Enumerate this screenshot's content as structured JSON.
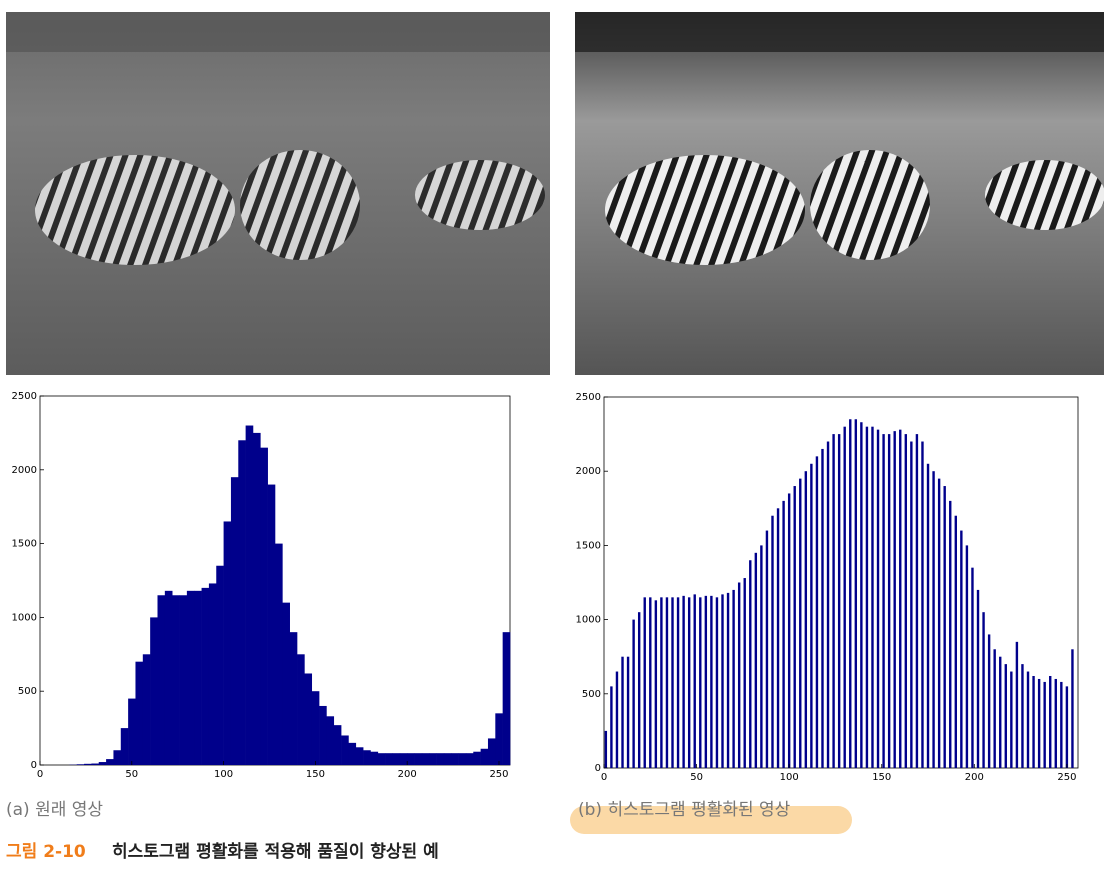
{
  "chart_data": [
    {
      "type": "histogram",
      "color": "#00008b",
      "bins": [
        0,
        4,
        8,
        12,
        16,
        20,
        24,
        28,
        32,
        36,
        40,
        44,
        48,
        52,
        56,
        60,
        64,
        68,
        72,
        76,
        80,
        84,
        88,
        92,
        96,
        100,
        104,
        108,
        112,
        116,
        120,
        124,
        128,
        132,
        136,
        140,
        144,
        148,
        152,
        156,
        160,
        164,
        168,
        172,
        176,
        180,
        184,
        188,
        192,
        196,
        200,
        204,
        208,
        212,
        216,
        220,
        224,
        228,
        232,
        236,
        240,
        244,
        248,
        252,
        256
      ],
      "values": [
        0,
        0,
        0,
        0,
        2,
        5,
        8,
        10,
        20,
        40,
        100,
        250,
        450,
        700,
        750,
        1000,
        1150,
        1180,
        1150,
        1150,
        1180,
        1180,
        1200,
        1230,
        1350,
        1650,
        1950,
        2200,
        2300,
        2250,
        2150,
        1900,
        1500,
        1100,
        900,
        750,
        620,
        500,
        400,
        330,
        270,
        200,
        150,
        120,
        100,
        90,
        80,
        80,
        80,
        80,
        80,
        80,
        80,
        80,
        80,
        80,
        80,
        80,
        80,
        90,
        110,
        180,
        350,
        900
      ],
      "xlim": [
        0,
        256
      ],
      "xticks": [
        0,
        50,
        100,
        150,
        200,
        250
      ],
      "ylim": [
        0,
        2500
      ],
      "yticks": [
        0,
        500,
        1000,
        1500,
        2000,
        2500
      ]
    },
    {
      "type": "bar",
      "color": "#00008b",
      "x": [
        1,
        4,
        7,
        10,
        13,
        16,
        19,
        22,
        25,
        28,
        31,
        34,
        37,
        40,
        43,
        46,
        49,
        52,
        55,
        58,
        61,
        64,
        67,
        70,
        73,
        76,
        79,
        82,
        85,
        88,
        91,
        94,
        97,
        100,
        103,
        106,
        109,
        112,
        115,
        118,
        121,
        124,
        127,
        130,
        133,
        136,
        139,
        142,
        145,
        148,
        151,
        154,
        157,
        160,
        163,
        166,
        169,
        172,
        175,
        178,
        181,
        184,
        187,
        190,
        193,
        196,
        199,
        202,
        205,
        208,
        211,
        214,
        217,
        220,
        223,
        226,
        229,
        232,
        235,
        238,
        241,
        244,
        247,
        250,
        253
      ],
      "values": [
        250,
        550,
        650,
        750,
        750,
        1000,
        1050,
        1150,
        1150,
        1130,
        1150,
        1150,
        1150,
        1150,
        1160,
        1150,
        1170,
        1150,
        1160,
        1160,
        1150,
        1170,
        1180,
        1200,
        1250,
        1280,
        1400,
        1450,
        1500,
        1600,
        1700,
        1750,
        1800,
        1850,
        1900,
        1950,
        2000,
        2050,
        2100,
        2150,
        2200,
        2250,
        2250,
        2300,
        2350,
        2350,
        2330,
        2300,
        2300,
        2280,
        2250,
        2250,
        2270,
        2280,
        2250,
        2200,
        2250,
        2200,
        2050,
        2000,
        1950,
        1900,
        1800,
        1700,
        1600,
        1500,
        1350,
        1200,
        1050,
        900,
        800,
        750,
        700,
        650,
        850,
        700,
        650,
        620,
        600,
        580,
        620,
        600,
        580,
        550,
        800
      ],
      "xlim": [
        0,
        256
      ],
      "xticks": [
        0,
        50,
        100,
        150,
        200,
        250
      ],
      "ylim": [
        0,
        2500
      ],
      "yticks": [
        0,
        500,
        1000,
        1500,
        2000,
        2500
      ]
    }
  ],
  "captions": [
    "(a) 원래 영상",
    "(b) 히스토그램 평활화된 영상"
  ],
  "figure_caption": {
    "number": "그림 2-10",
    "text": "히스토그램 평활화를 적용해 품질이 향상된 예"
  }
}
